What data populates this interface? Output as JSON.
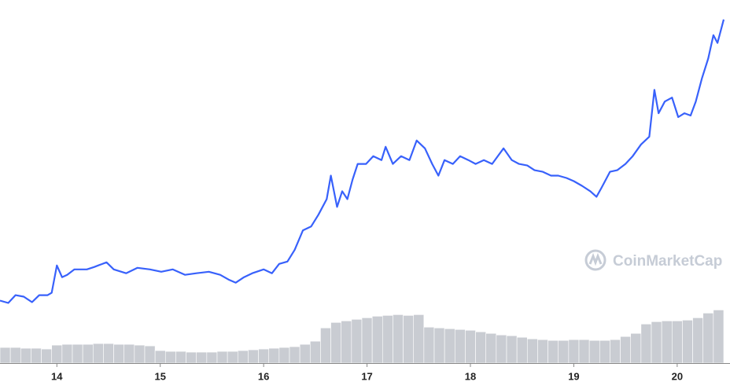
{
  "chart_data": {
    "type": "line",
    "watermark": "CoinMarketCap",
    "xlim": [
      13.45,
      20.45
    ],
    "xticks": [
      14,
      15,
      16,
      17,
      18,
      19,
      20
    ],
    "ylim": [
      0,
      465
    ],
    "series": [
      {
        "type": "line",
        "color": "#3861fb",
        "x": [
          13.45,
          13.53,
          13.6,
          13.68,
          13.76,
          13.83,
          13.91,
          13.95,
          14.0,
          14.05,
          14.1,
          14.17,
          14.29,
          14.36,
          14.48,
          14.55,
          14.67,
          14.78,
          14.9,
          15.01,
          15.12,
          15.24,
          15.35,
          15.47,
          15.58,
          15.66,
          15.73,
          15.81,
          15.89,
          16.0,
          16.08,
          16.15,
          16.23,
          16.3,
          16.38,
          16.46,
          16.53,
          16.61,
          16.65,
          16.71,
          16.76,
          16.81,
          16.86,
          16.91,
          16.99,
          17.06,
          17.14,
          17.18,
          17.25,
          17.33,
          17.41,
          17.48,
          17.56,
          17.63,
          17.69,
          17.75,
          17.83,
          17.9,
          17.98,
          18.05,
          18.13,
          18.21,
          18.32,
          18.4,
          18.47,
          18.55,
          18.62,
          18.7,
          18.78,
          18.85,
          18.93,
          19.0,
          19.08,
          19.16,
          19.22,
          19.27,
          19.35,
          19.42,
          19.5,
          19.57,
          19.65,
          19.73,
          19.78,
          19.82,
          19.88,
          19.95,
          20.01,
          20.07,
          20.13,
          20.18,
          20.24,
          20.3,
          20.35,
          20.39,
          20.45
        ],
        "values": [
          80,
          77,
          87,
          85,
          78,
          87,
          87,
          90,
          125,
          110,
          113,
          120,
          120,
          123,
          129,
          120,
          115,
          122,
          120,
          117,
          120,
          113,
          115,
          117,
          113,
          107,
          103,
          110,
          115,
          120,
          115,
          127,
          130,
          145,
          170,
          175,
          190,
          210,
          240,
          200,
          220,
          210,
          235,
          255,
          255,
          265,
          260,
          277,
          255,
          265,
          260,
          285,
          275,
          255,
          240,
          260,
          255,
          265,
          260,
          255,
          260,
          255,
          275,
          260,
          255,
          253,
          247,
          245,
          240,
          240,
          237,
          233,
          227,
          220,
          213,
          225,
          245,
          247,
          255,
          265,
          280,
          290,
          350,
          320,
          335,
          340,
          315,
          320,
          317,
          335,
          365,
          390,
          420,
          410,
          440
        ]
      },
      {
        "type": "bar",
        "color": "#c9ccd2",
        "x": [
          13.5,
          13.6,
          13.7,
          13.8,
          13.9,
          14.0,
          14.1,
          14.2,
          14.3,
          14.4,
          14.5,
          14.6,
          14.7,
          14.8,
          14.9,
          15.0,
          15.1,
          15.2,
          15.3,
          15.4,
          15.5,
          15.6,
          15.7,
          15.8,
          15.9,
          16.0,
          16.1,
          16.2,
          16.3,
          16.4,
          16.5,
          16.6,
          16.7,
          16.8,
          16.9,
          17.0,
          17.1,
          17.2,
          17.3,
          17.4,
          17.5,
          17.6,
          17.7,
          17.8,
          17.9,
          18.0,
          18.1,
          18.2,
          18.3,
          18.4,
          18.5,
          18.6,
          18.7,
          18.8,
          18.9,
          19.0,
          19.1,
          19.2,
          19.3,
          19.4,
          19.5,
          19.6,
          19.7,
          19.8,
          19.9,
          20.0,
          20.1,
          20.2,
          20.3,
          20.4
        ],
        "values": [
          20,
          20,
          19,
          19,
          18,
          23,
          24,
          24,
          24,
          25,
          25,
          24,
          24,
          23,
          22,
          16,
          15,
          15,
          14,
          14,
          14,
          15,
          15,
          16,
          17,
          18,
          19,
          20,
          21,
          24,
          28,
          45,
          52,
          54,
          56,
          58,
          60,
          61,
          62,
          61,
          62,
          46,
          45,
          44,
          43,
          42,
          40,
          38,
          36,
          35,
          33,
          31,
          30,
          29,
          29,
          30,
          30,
          29,
          29,
          30,
          34,
          38,
          50,
          53,
          54,
          54,
          55,
          58,
          64,
          68
        ]
      }
    ]
  }
}
